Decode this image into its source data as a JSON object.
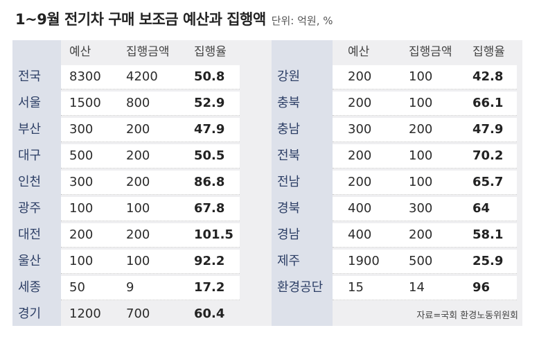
{
  "title": "1~9월 전기차 구매 보조금 예산과 집행액",
  "unit": "단위: 억원, %",
  "headers": [
    "예산",
    "집행금액",
    "집행율"
  ],
  "source": "자료=국회 환경노동위원회",
  "chart_data": {
    "type": "table",
    "columns": [
      "",
      "예산",
      "집행금액",
      "집행율"
    ],
    "left_rows": [
      {
        "region": "전국",
        "budget": "8300",
        "spent": "4200",
        "rate": "50.8"
      },
      {
        "region": "서울",
        "budget": "1500",
        "spent": "800",
        "rate": "52.9"
      },
      {
        "region": "부산",
        "budget": "300",
        "spent": "200",
        "rate": "47.9"
      },
      {
        "region": "대구",
        "budget": "500",
        "spent": "200",
        "rate": "50.5"
      },
      {
        "region": "인천",
        "budget": "300",
        "spent": "200",
        "rate": "86.8"
      },
      {
        "region": "광주",
        "budget": "100",
        "spent": "100",
        "rate": "67.8"
      },
      {
        "region": "대전",
        "budget": "200",
        "spent": "200",
        "rate": "101.5"
      },
      {
        "region": "울산",
        "budget": "100",
        "spent": "100",
        "rate": "92.2"
      },
      {
        "region": "세종",
        "budget": "50",
        "spent": "9",
        "rate": "17.2"
      },
      {
        "region": "경기",
        "budget": "1200",
        "spent": "700",
        "rate": "60.4"
      }
    ],
    "right_rows": [
      {
        "region": "강원",
        "budget": "200",
        "spent": "100",
        "rate": "42.8"
      },
      {
        "region": "충북",
        "budget": "200",
        "spent": "100",
        "rate": "66.1"
      },
      {
        "region": "충남",
        "budget": "300",
        "spent": "200",
        "rate": "47.9"
      },
      {
        "region": "전북",
        "budget": "200",
        "spent": "100",
        "rate": "70.2"
      },
      {
        "region": "전남",
        "budget": "200",
        "spent": "100",
        "rate": "65.7"
      },
      {
        "region": "경북",
        "budget": "400",
        "spent": "300",
        "rate": "64"
      },
      {
        "region": "경남",
        "budget": "400",
        "spent": "200",
        "rate": "58.1"
      },
      {
        "region": "제주",
        "budget": "1900",
        "spent": "500",
        "rate": "25.9"
      },
      {
        "region": "환경공단",
        "budget": "15",
        "spent": "14",
        "rate": "96"
      }
    ]
  }
}
